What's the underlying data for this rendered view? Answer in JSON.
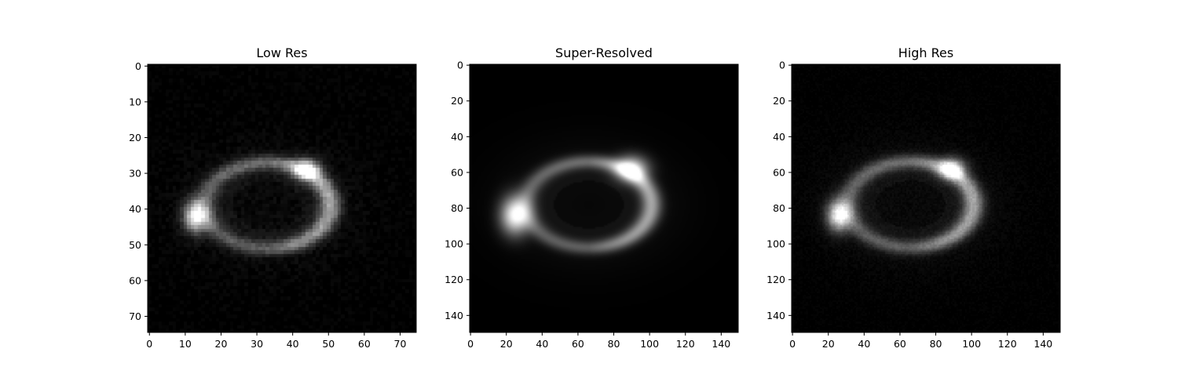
{
  "chart_data": [
    {
      "type": "heatmap",
      "title": "Low Res",
      "colormap": "gray",
      "size": 75,
      "xticks": [
        0,
        10,
        20,
        30,
        40,
        50,
        60,
        70
      ],
      "yticks": [
        0,
        10,
        20,
        30,
        40,
        50,
        60,
        70
      ],
      "xlim": [
        -0.5,
        74.5
      ],
      "ylim": [
        74.5,
        -0.5
      ],
      "image": {
        "ring_center": [
          33,
          39
        ],
        "ring_radii": [
          17.5,
          12
        ],
        "bright_spots": [
          [
            13,
            42
          ],
          [
            44,
            29
          ]
        ],
        "noise": "high"
      }
    },
    {
      "type": "heatmap",
      "title": "Super-Resolved",
      "colormap": "gray",
      "size": 150,
      "xticks": [
        0,
        20,
        40,
        60,
        80,
        100,
        120,
        140
      ],
      "yticks": [
        0,
        20,
        40,
        60,
        80,
        100,
        120,
        140
      ],
      "xlim": [
        -0.5,
        149.5
      ],
      "ylim": [
        149.5,
        -0.5
      ],
      "image": {
        "ring_center": [
          66,
          78
        ],
        "ring_radii": [
          35,
          24
        ],
        "bright_spots": [
          [
            25,
            84
          ],
          [
            90,
            58
          ]
        ],
        "noise": "none"
      }
    },
    {
      "type": "heatmap",
      "title": "High Res",
      "colormap": "gray",
      "size": 150,
      "xticks": [
        0,
        20,
        40,
        60,
        80,
        100,
        120,
        140
      ],
      "yticks": [
        0,
        20,
        40,
        60,
        80,
        100,
        120,
        140
      ],
      "xlim": [
        -0.5,
        149.5
      ],
      "ylim": [
        149.5,
        -0.5
      ],
      "image": {
        "ring_center": [
          66,
          78
        ],
        "ring_radii": [
          35,
          24
        ],
        "bright_spots": [
          [
            26,
            84
          ],
          [
            89,
            58
          ]
        ],
        "noise": "medium"
      }
    }
  ]
}
